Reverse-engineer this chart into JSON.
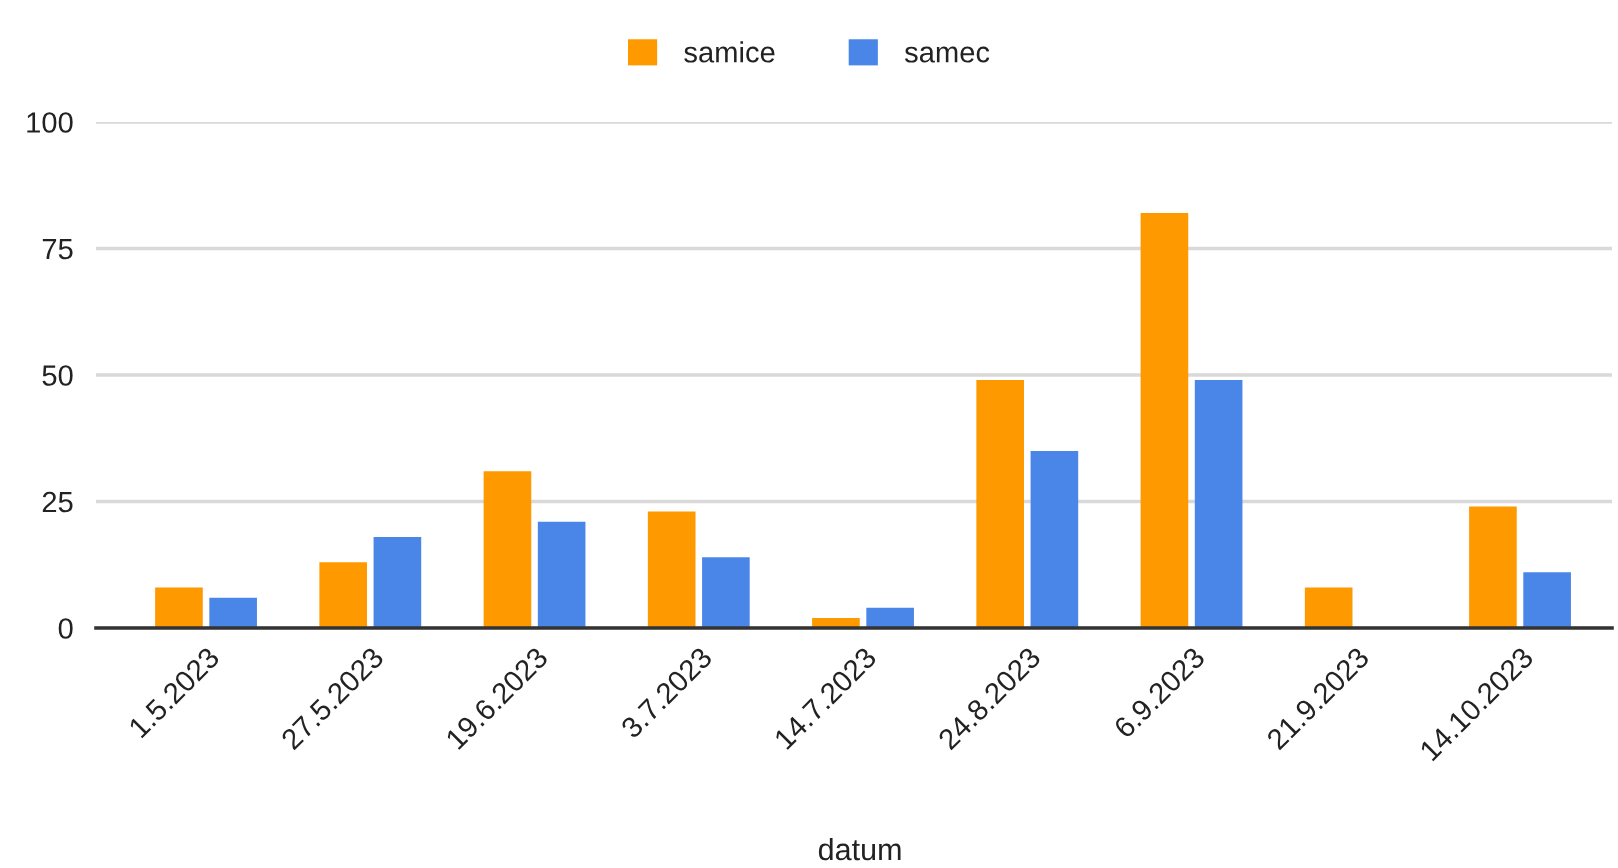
{
  "chart_data": {
    "type": "bar",
    "xlabel": "datum",
    "categories": [
      "1.5.2023",
      "27.5.2023",
      "19.6.2023",
      "3.7.2023",
      "14.7.2023",
      "24.8.2023",
      "6.9.2023",
      "21.9.2023",
      "14.10.2023"
    ],
    "series": [
      {
        "name": "samice",
        "color": "#ff9900",
        "values": [
          8,
          13,
          31,
          23,
          2,
          49,
          82,
          8,
          24
        ]
      },
      {
        "name": "samec",
        "color": "#4a86e8",
        "values": [
          6,
          18,
          21,
          14,
          4,
          35,
          49,
          null,
          11
        ]
      }
    ],
    "ylim": [
      0,
      100
    ],
    "yticks": [
      0,
      25,
      50,
      75,
      100
    ],
    "grid": "y",
    "legend": "top"
  }
}
